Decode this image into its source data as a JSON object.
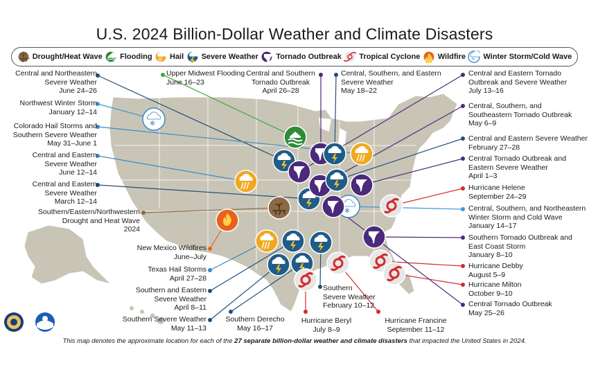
{
  "title": "U.S. 2024 Billion-Dollar Weather and Climate Disasters",
  "legend": [
    {
      "key": "drought",
      "label": "Drought/Heat Wave",
      "color": "#8b6a45"
    },
    {
      "key": "flood",
      "label": "Flooding",
      "color": "#2e8b3a"
    },
    {
      "key": "hail",
      "label": "Hail",
      "color": "#f0a81e"
    },
    {
      "key": "severe",
      "label": "Severe Weather",
      "color": "#1f5c8a"
    },
    {
      "key": "tornado",
      "label": "Tornado Outbreak",
      "color": "#4b2a7b"
    },
    {
      "key": "tropical",
      "label": "Tropical Cyclone",
      "color": "#d4d4d4"
    },
    {
      "key": "wildfire",
      "label": "Wildfire",
      "color": "#e8621d"
    },
    {
      "key": "winter",
      "label": "Winter Storm/Cold Wave",
      "color": "#cfe8f7"
    }
  ],
  "events": [
    {
      "id": "e1",
      "line1": "Central and Northeastern",
      "line2": "Severe Weather",
      "date": "June 24–26",
      "type": "severe"
    },
    {
      "id": "e2",
      "line1": "Northwest Winter Storm",
      "line2": "",
      "date": "January 12–14",
      "type": "winter"
    },
    {
      "id": "e3",
      "line1": "Colorado Hail Storms and",
      "line2": "Southern Severe Weather",
      "date": "May 31–June 1",
      "type": "hail"
    },
    {
      "id": "e4",
      "line1": "Central and Eastern",
      "line2": "Severe Weather",
      "date": "June 12–14",
      "type": "hail"
    },
    {
      "id": "e5",
      "line1": "Central and Eastern",
      "line2": "Severe Weather",
      "date": "March 12–14",
      "type": "severe"
    },
    {
      "id": "e6",
      "line1": "Southern/Eastern/Northwestern",
      "line2": "Drought and Heat Wave",
      "date": "2024",
      "type": "drought"
    },
    {
      "id": "e7",
      "line1": "New Mexico Wildfires",
      "line2": "",
      "date": "June–July",
      "type": "wildfire"
    },
    {
      "id": "e8",
      "line1": "Texas Hail Storms",
      "line2": "",
      "date": "April 27–28",
      "type": "hail"
    },
    {
      "id": "e9",
      "line1": "Southern and Eastern",
      "line2": "Severe Weather",
      "date": "April 8–11",
      "type": "severe"
    },
    {
      "id": "e10",
      "line1": "Southern Severe Weather",
      "line2": "",
      "date": "May 11–13",
      "type": "severe"
    },
    {
      "id": "e11",
      "line1": "Southern Derecho",
      "line2": "",
      "date": "May 16–17",
      "type": "severe"
    },
    {
      "id": "e12",
      "line1": "Hurricane Beryl",
      "line2": "",
      "date": "July 8–9",
      "type": "tropical"
    },
    {
      "id": "e13",
      "line1": "Southern",
      "line2": "Severe Weather",
      "date": "February 10–12",
      "type": "severe"
    },
    {
      "id": "e14",
      "line1": "Hurricane Francine",
      "line2": "",
      "date": "September 11–12",
      "type": "tropical"
    },
    {
      "id": "e15",
      "line1": "Upper Midwest Flooding",
      "line2": "",
      "date": "June 16–23",
      "type": "flood"
    },
    {
      "id": "e16",
      "line1": "Central and Southern",
      "line2": "Tornado Outbreak",
      "date": "April 26–28",
      "type": "tornado"
    },
    {
      "id": "e17",
      "line1": "Central, Southern, and Eastern",
      "line2": "Severe Weather",
      "date": "May 18–22",
      "type": "severe"
    },
    {
      "id": "e18",
      "line1": "Central and Eastern Tornado",
      "line2": "Outbreak and Severe Weather",
      "date": "July 13–16",
      "type": "tornado"
    },
    {
      "id": "e19",
      "line1": "Central, Southern, and",
      "line2": "Southeastern Tornado Outbreak",
      "date": "May 6–9",
      "type": "tornado"
    },
    {
      "id": "e20",
      "line1": "Central and Eastern Severe Weather",
      "line2": "",
      "date": "February 27–28",
      "type": "severe"
    },
    {
      "id": "e21",
      "line1": "Central Tornado Outbreak and",
      "line2": "Eastern Severe Weather",
      "date": "April 1–3",
      "type": "tornado"
    },
    {
      "id": "e22",
      "line1": "Hurricane Helene",
      "line2": "",
      "date": "September 24–29",
      "type": "tropical"
    },
    {
      "id": "e23",
      "line1": "Central, Southern, and Northeastern",
      "line2": "Winter Storm and Cold Wave",
      "date": "January 14–17",
      "type": "winter"
    },
    {
      "id": "e24",
      "line1": "Southern Tornado Outbreak and",
      "line2": "East Coast Storm",
      "date": "January 8–10",
      "type": "tornado"
    },
    {
      "id": "e25",
      "line1": "Hurricane Debby",
      "line2": "",
      "date": "August 5–9",
      "type": "tropical"
    },
    {
      "id": "e26",
      "line1": "Hurricane Milton",
      "line2": "",
      "date": "October 9–10",
      "type": "tropical"
    },
    {
      "id": "e27",
      "line1": "Central Tornado Outbreak",
      "line2": "",
      "date": "May 25–26",
      "type": "tornado"
    }
  ],
  "footnote": {
    "pre": "This map denotes the approximate location for each of the ",
    "bold": "27 separate billion-dollar weather and climate disasters",
    "post": " that impacted the United States in 2024."
  },
  "seals": {
    "doc": "doc-seal",
    "noaa": "noaa-logo"
  }
}
